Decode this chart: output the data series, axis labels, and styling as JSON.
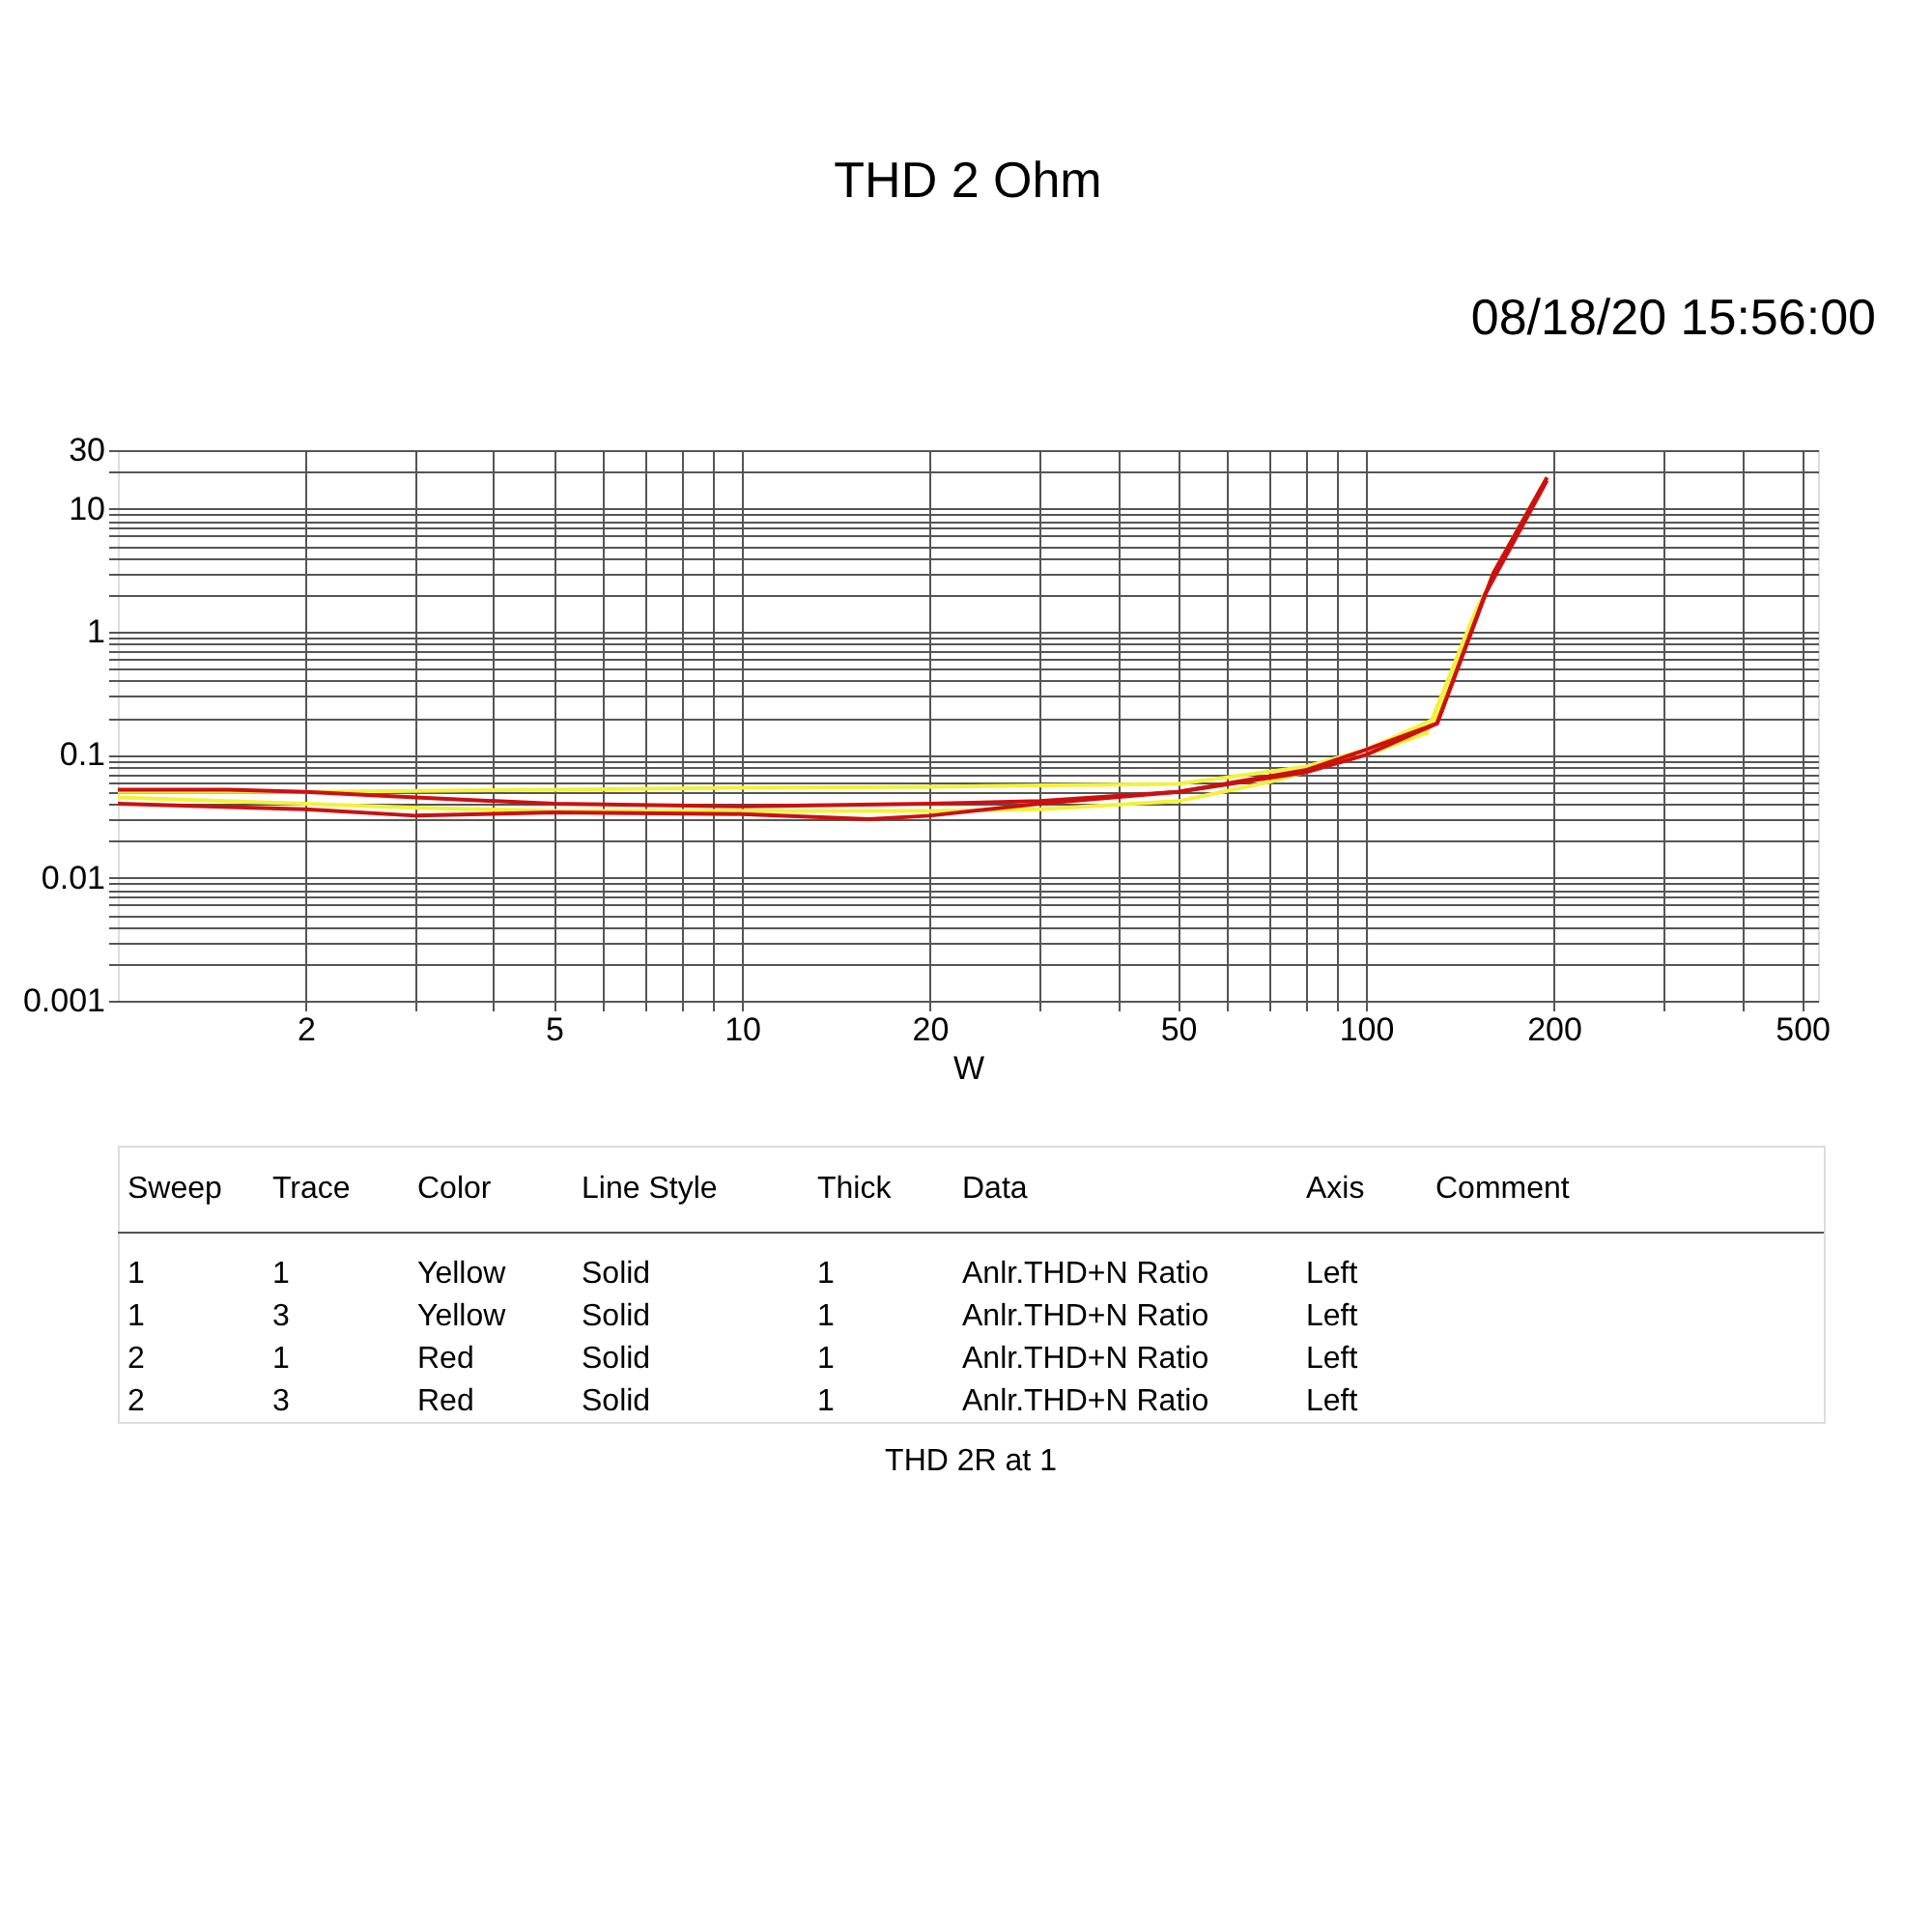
{
  "chart_data": {
    "type": "line",
    "title": "THD 2 Ohm",
    "xlabel": "W",
    "log": "xy",
    "grid": true,
    "line_style": "solid",
    "marker": "none",
    "xlim": [
      1,
      530
    ],
    "ylim": [
      0.001,
      30
    ],
    "xticks": [
      2,
      {
        "value": 3,
        "label": null
      },
      {
        "value": 4,
        "label": null
      },
      5,
      {
        "value": 6,
        "label": null
      },
      {
        "value": 7,
        "label": null
      },
      {
        "value": 8,
        "label": null
      },
      {
        "value": 9,
        "label": null
      },
      10,
      20,
      {
        "value": 30,
        "label": null
      },
      {
        "value": 40,
        "label": null
      },
      50,
      {
        "value": 60,
        "label": null
      },
      {
        "value": 70,
        "label": null
      },
      {
        "value": 80,
        "label": null
      },
      {
        "value": 90,
        "label": null
      },
      100,
      200,
      {
        "value": 300,
        "label": null
      },
      {
        "value": 400,
        "label": null
      },
      500
    ],
    "yticks": [
      0.001,
      {
        "value": 0.002,
        "label": null
      },
      {
        "value": 0.003,
        "label": null
      },
      {
        "value": 0.004,
        "label": null
      },
      {
        "value": 0.005,
        "label": null
      },
      {
        "value": 0.006,
        "label": null
      },
      {
        "value": 0.007,
        "label": null
      },
      {
        "value": 0.008,
        "label": null
      },
      {
        "value": 0.009,
        "label": null
      },
      0.01,
      {
        "value": 0.02,
        "label": null
      },
      {
        "value": 0.03,
        "label": null
      },
      {
        "value": 0.04,
        "label": null
      },
      {
        "value": 0.05,
        "label": null
      },
      {
        "value": 0.06,
        "label": null
      },
      {
        "value": 0.07,
        "label": null
      },
      {
        "value": 0.08,
        "label": null
      },
      {
        "value": 0.09,
        "label": null
      },
      0.1,
      {
        "value": 0.2,
        "label": null
      },
      {
        "value": 0.3,
        "label": null
      },
      {
        "value": 0.4,
        "label": null
      },
      {
        "value": 0.5,
        "label": null
      },
      {
        "value": 0.6,
        "label": null
      },
      {
        "value": 0.7,
        "label": null
      },
      {
        "value": 0.8,
        "label": null
      },
      {
        "value": 0.9,
        "label": null
      },
      1,
      {
        "value": 2,
        "label": null
      },
      {
        "value": 3,
        "label": null
      },
      {
        "value": 4,
        "label": null
      },
      {
        "value": 5,
        "label": null
      },
      {
        "value": 6,
        "label": null
      },
      {
        "value": 7,
        "label": null
      },
      {
        "value": 8,
        "label": null
      },
      {
        "value": 9,
        "label": null
      },
      10,
      {
        "value": 20,
        "label": null
      },
      30
    ],
    "series": [
      {
        "color": "#f2f23a",
        "x": [
          1,
          2,
          5,
          10,
          20,
          50,
          80,
          100,
          130,
          160,
          195
        ],
        "values": [
          0.05,
          0.05,
          0.052,
          0.054,
          0.055,
          0.058,
          0.08,
          0.11,
          0.2,
          3,
          18
        ]
      },
      {
        "color": "#f2f23a",
        "x": [
          1,
          2,
          3,
          5,
          10,
          20,
          30,
          50,
          70,
          100,
          125,
          150,
          195
        ],
        "values": [
          0.045,
          0.04,
          0.037,
          0.035,
          0.035,
          0.035,
          0.036,
          0.042,
          0.06,
          0.1,
          0.15,
          1.5,
          18
        ]
      },
      {
        "color": "#cc1010",
        "x": [
          1,
          1.5,
          2,
          3,
          5,
          10,
          20,
          30,
          50,
          80,
          100,
          130,
          160,
          195
        ],
        "values": [
          0.052,
          0.052,
          0.05,
          0.045,
          0.04,
          0.038,
          0.04,
          0.042,
          0.05,
          0.075,
          0.11,
          0.18,
          3,
          18
        ]
      },
      {
        "color": "#cc1010",
        "x": [
          1,
          2,
          3,
          5,
          10,
          16,
          20,
          30,
          50,
          80,
          100,
          130,
          155,
          195
        ],
        "values": [
          0.04,
          0.036,
          0.032,
          0.034,
          0.033,
          0.03,
          0.032,
          0.04,
          0.05,
          0.072,
          0.1,
          0.18,
          2,
          17
        ]
      }
    ],
    "annotations": [
      "08/18/20 15:56:00",
      "Sweep",
      "Trace",
      "Color",
      "Line Style",
      "Thick",
      "Data",
      "Axis",
      "Comment",
      "1",
      "1",
      "Yellow",
      "Solid",
      "1",
      "Anlr.THD+N Ratio",
      "Left",
      "1",
      "3",
      "Yellow",
      "Solid",
      "1",
      "Anlr.THD+N Ratio",
      "Left",
      "2",
      "1",
      "Red",
      "Solid",
      "1",
      "Anlr.THD+N Ratio",
      "Left",
      "2",
      "3",
      "Red",
      "Solid",
      "1",
      "Anlr.THD+N Ratio",
      "Left",
      "THD 2R at 1"
    ]
  }
}
